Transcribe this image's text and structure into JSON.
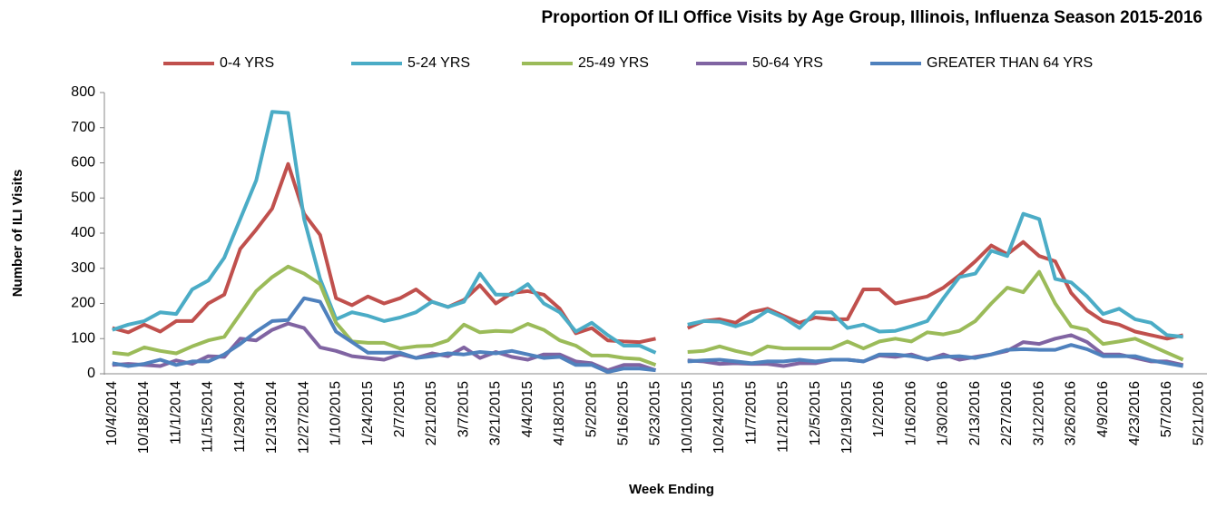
{
  "chart_data": {
    "type": "line",
    "title": "Proportion Of ILI Office Visits by Age Group, Illinois, Influenza Season 2015-2016",
    "x_label": "Week Ending",
    "y_label": "Number of ILI Visits",
    "categories": [
      "10/4/2014",
      null,
      "10/18/2014",
      null,
      "11/1/2014",
      null,
      "11/15/2014",
      null,
      "11/29/2014",
      null,
      "12/13/2014",
      null,
      "12/27/2014",
      null,
      "1/10/2015",
      null,
      "1/24/2015",
      null,
      "2/7/2015",
      null,
      "2/21/2015",
      null,
      "3/7/2015",
      null,
      "3/21/2015",
      null,
      "4/4/2015",
      null,
      "4/18/2015",
      null,
      "5/2/2015",
      null,
      "5/16/2015",
      null,
      "5/23/2015",
      null,
      "10/10/2015",
      null,
      "10/24/2015",
      null,
      "11/7/2015",
      null,
      "11/21/2015",
      null,
      "12/5/2015",
      null,
      "12/19/2015",
      null,
      "1/2/2016",
      null,
      "1/16/2016",
      null,
      "1/30/2016",
      null,
      "2/13/2016",
      null,
      "2/27/2016",
      null,
      "3/12/2016",
      null,
      "3/26/2016",
      null,
      "4/9/2016",
      null,
      "4/23/2016",
      null,
      "5/7/2016",
      null,
      "5/21/2016"
    ],
    "series": [
      {
        "name": "0-4 YRS",
        "color": "#c0504d",
        "values": [
          130,
          118,
          140,
          120,
          150,
          150,
          200,
          225,
          355,
          410,
          470,
          597,
          455,
          395,
          215,
          195,
          220,
          200,
          215,
          240,
          205,
          190,
          210,
          252,
          200,
          230,
          235,
          225,
          185,
          115,
          130,
          95,
          92,
          90,
          100,
          null,
          130,
          150,
          155,
          145,
          175,
          185,
          165,
          145,
          160,
          155,
          155,
          240,
          240,
          200,
          210,
          220,
          245,
          280,
          320,
          365,
          340,
          375,
          335,
          320,
          230,
          180,
          150,
          140,
          120,
          110,
          100,
          110,
          null
        ]
      },
      {
        "name": "5-24 YRS",
        "color": "#4bacc6",
        "values": [
          125,
          140,
          150,
          175,
          170,
          240,
          265,
          330,
          440,
          550,
          745,
          742,
          440,
          270,
          155,
          175,
          165,
          150,
          160,
          175,
          205,
          190,
          205,
          285,
          225,
          225,
          255,
          200,
          175,
          120,
          145,
          110,
          80,
          80,
          60,
          null,
          140,
          150,
          148,
          135,
          150,
          180,
          160,
          130,
          175,
          175,
          130,
          140,
          120,
          122,
          135,
          150,
          215,
          275,
          285,
          350,
          335,
          455,
          440,
          270,
          260,
          220,
          170,
          185,
          155,
          145,
          110,
          105,
          null
        ]
      },
      {
        "name": "25-49 YRS",
        "color": "#9bbb59",
        "values": [
          60,
          55,
          75,
          65,
          58,
          78,
          95,
          105,
          170,
          235,
          275,
          305,
          285,
          255,
          145,
          92,
          88,
          88,
          72,
          78,
          80,
          95,
          140,
          118,
          122,
          120,
          142,
          125,
          95,
          80,
          52,
          52,
          45,
          42,
          25,
          null,
          62,
          65,
          78,
          65,
          55,
          78,
          72,
          72,
          72,
          72,
          92,
          72,
          92,
          100,
          92,
          118,
          112,
          122,
          150,
          200,
          245,
          232,
          290,
          200,
          135,
          125,
          85,
          92,
          100,
          80,
          60,
          40,
          null
        ]
      },
      {
        "name": "50-64 YRS",
        "color": "#8064a2",
        "values": [
          25,
          28,
          25,
          22,
          38,
          28,
          50,
          48,
          100,
          95,
          125,
          143,
          130,
          75,
          65,
          50,
          45,
          40,
          55,
          45,
          58,
          50,
          75,
          45,
          62,
          48,
          40,
          55,
          55,
          35,
          30,
          10,
          25,
          25,
          10,
          null,
          38,
          35,
          28,
          30,
          28,
          28,
          22,
          30,
          30,
          40,
          40,
          35,
          52,
          48,
          55,
          40,
          55,
          40,
          48,
          55,
          65,
          90,
          85,
          100,
          110,
          90,
          55,
          55,
          45,
          35,
          35,
          25,
          null
        ]
      },
      {
        "name": "GREATER THAN 64 YRS",
        "color": "#4f81bd",
        "values": [
          30,
          22,
          28,
          40,
          25,
          35,
          35,
          55,
          85,
          120,
          150,
          153,
          215,
          205,
          120,
          90,
          60,
          60,
          60,
          45,
          50,
          58,
          55,
          62,
          58,
          65,
          55,
          45,
          48,
          25,
          25,
          5,
          15,
          15,
          10,
          null,
          35,
          38,
          40,
          35,
          30,
          35,
          35,
          40,
          35,
          40,
          40,
          35,
          55,
          55,
          50,
          42,
          48,
          50,
          45,
          55,
          68,
          70,
          68,
          68,
          82,
          70,
          50,
          50,
          50,
          38,
          30,
          22,
          null
        ]
      }
    ],
    "ylim": [
      0,
      800
    ],
    "yticks": [
      0,
      100,
      200,
      300,
      400,
      500,
      600,
      700,
      800
    ],
    "grid": false,
    "legend": "top"
  }
}
